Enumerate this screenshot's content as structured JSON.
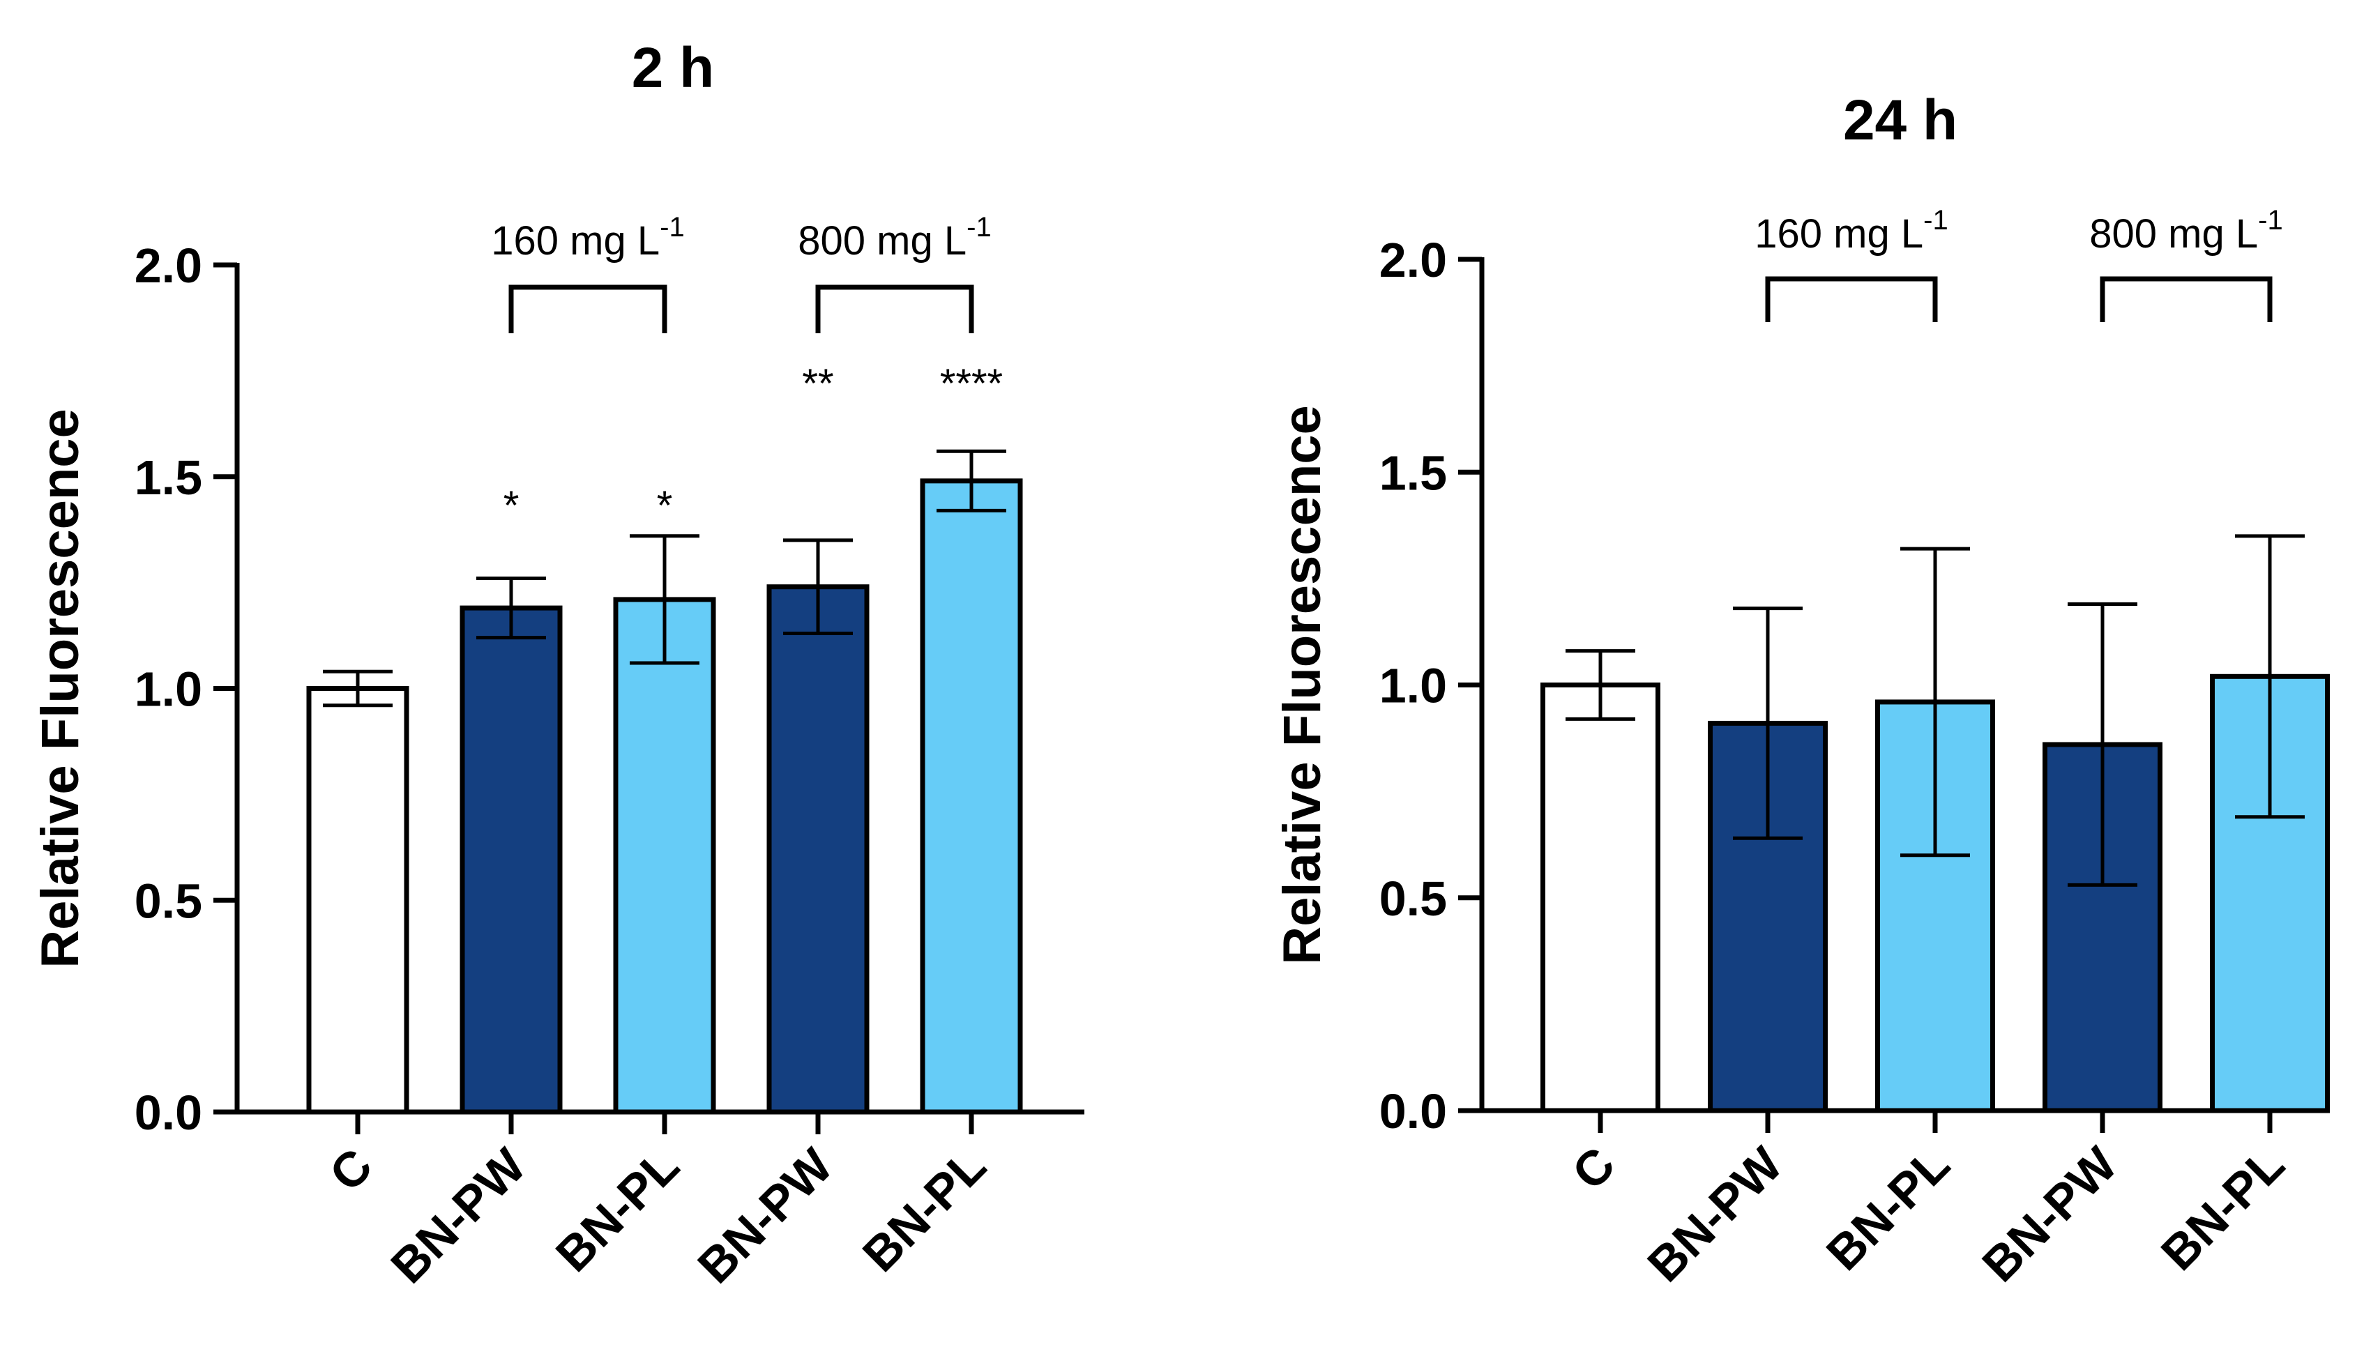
{
  "chart_data": [
    {
      "type": "bar",
      "title": "2 h",
      "ylabel": "Relative Fluorescence",
      "xlabel": "",
      "ylim": [
        0,
        2.0
      ],
      "yticks": [
        "0.0",
        "0.5",
        "1.0",
        "1.5",
        "2.0"
      ],
      "categories": [
        "C",
        "BN-PW",
        "BN-PL",
        "BN-PW",
        "BN-PL"
      ],
      "values": [
        1.0,
        1.19,
        1.21,
        1.24,
        1.49
      ],
      "errors": [
        0.04,
        0.07,
        0.15,
        0.11,
        0.07
      ],
      "colors": [
        "#ffffff",
        "#143f80",
        "#66ccf7",
        "#143f80",
        "#66ccf7"
      ],
      "significance": [
        "",
        "*",
        "*",
        "**",
        "****"
      ],
      "groups": [
        {
          "label": "160 mg L",
          "sup": "-1",
          "from": 1,
          "to": 2
        },
        {
          "label": "800 mg L",
          "sup": "-1",
          "from": 3,
          "to": 4
        }
      ]
    },
    {
      "type": "bar",
      "title": "24 h",
      "ylabel": "Relative Fluorescence",
      "xlabel": "",
      "ylim": [
        0,
        2.0
      ],
      "yticks": [
        "0.0",
        "0.5",
        "1.0",
        "1.5",
        "2.0"
      ],
      "categories": [
        "C",
        "BN-PW",
        "BN-PL",
        "BN-PW",
        "BN-PL"
      ],
      "values": [
        1.0,
        0.91,
        0.96,
        0.86,
        1.02
      ],
      "errors": [
        0.08,
        0.27,
        0.36,
        0.33,
        0.33
      ],
      "colors": [
        "#ffffff",
        "#143f80",
        "#66ccf7",
        "#143f80",
        "#66ccf7"
      ],
      "significance": [
        "",
        "",
        "",
        "",
        ""
      ],
      "groups": [
        {
          "label": "160 mg L",
          "sup": "-1",
          "from": 1,
          "to": 2
        },
        {
          "label": "800 mg L",
          "sup": "-1",
          "from": 3,
          "to": 4
        }
      ]
    }
  ]
}
